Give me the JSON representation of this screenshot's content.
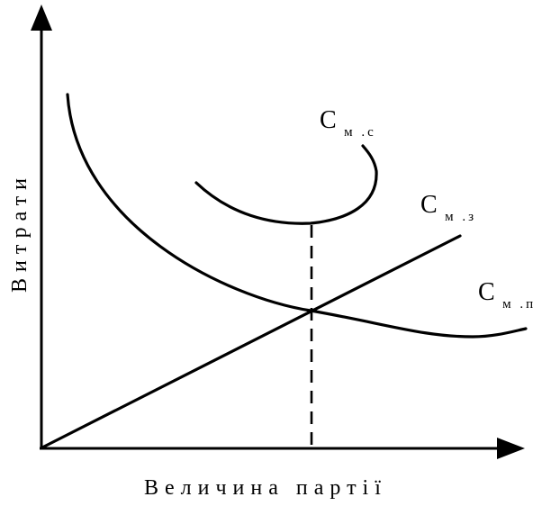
{
  "axes": {
    "x_label": "Величина партії",
    "y_label": "Витрати"
  },
  "curves": {
    "ms": {
      "main": "С",
      "sub": "м .с"
    },
    "mz": {
      "main": "С",
      "sub": "м .з"
    },
    "mp": {
      "main": "С",
      "sub": "м .п"
    }
  },
  "colors": {
    "stroke": "#000000",
    "background": "#ffffff"
  }
}
